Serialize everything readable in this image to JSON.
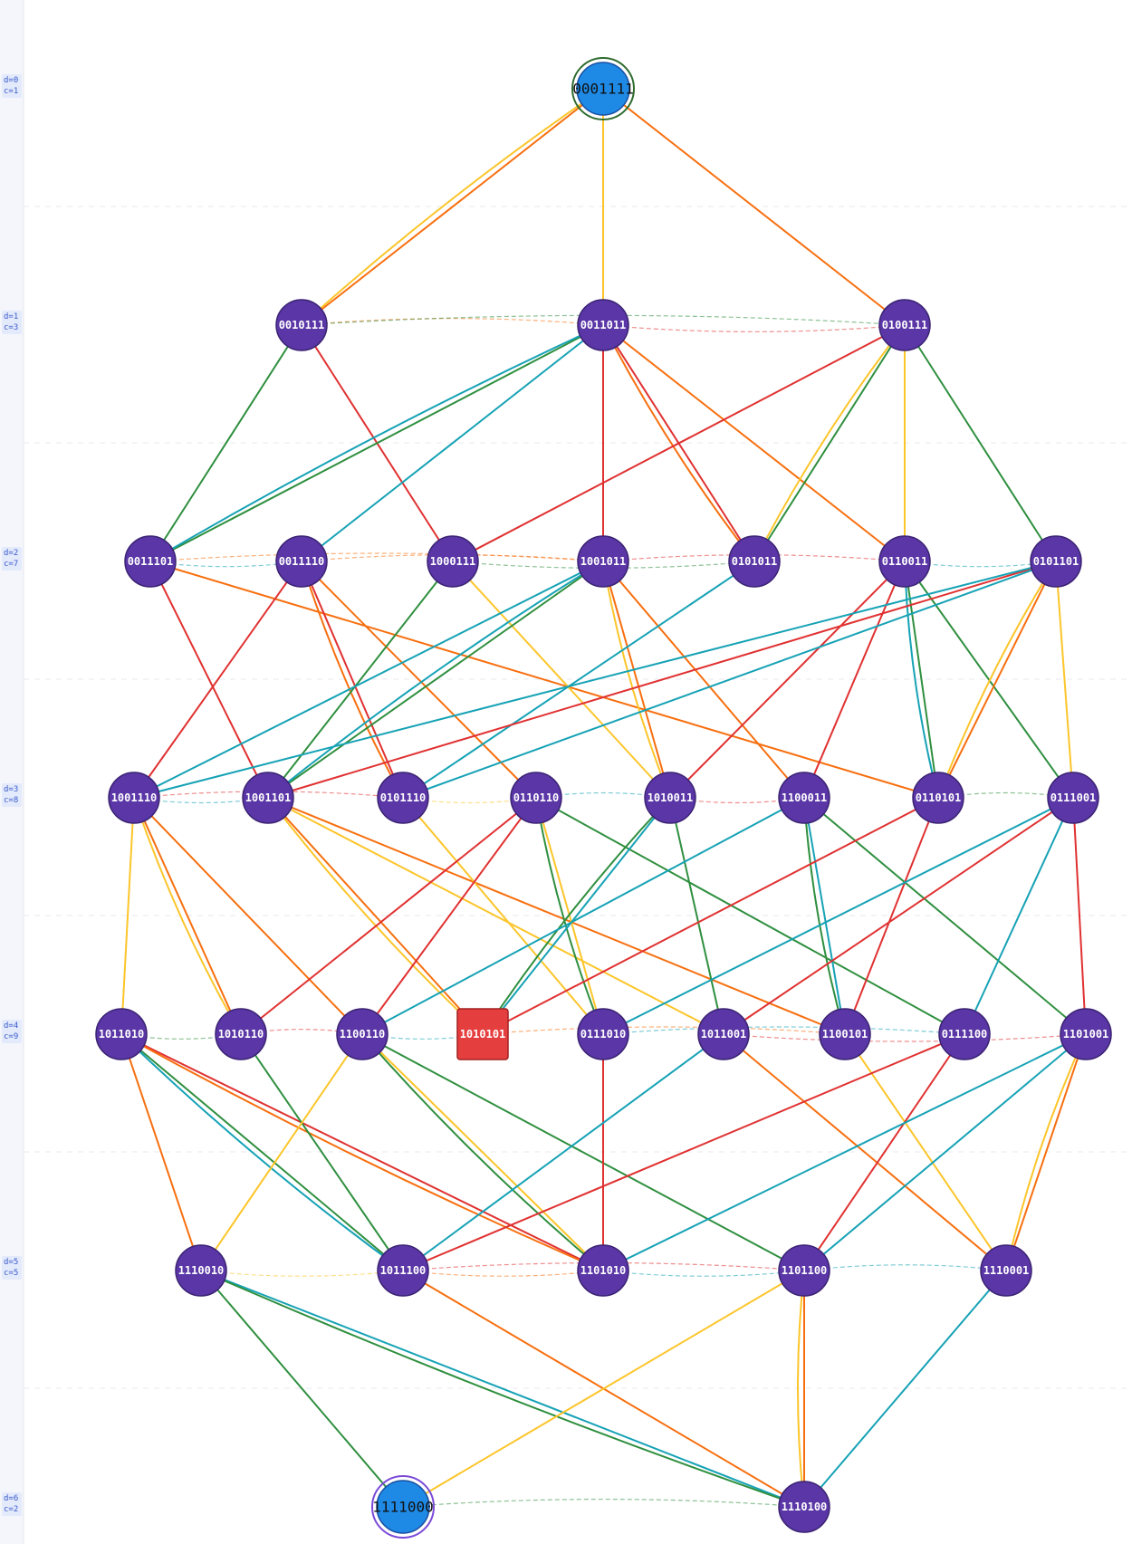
{
  "levels": [
    {
      "d": "d=0",
      "c": "c=1",
      "nodes": [
        "0001111"
      ]
    },
    {
      "d": "d=1",
      "c": "c=3",
      "nodes": [
        "0010111",
        "0011011",
        "0100111"
      ]
    },
    {
      "d": "d=2",
      "c": "c=7",
      "nodes": [
        "0011101",
        "0011110",
        "1000111",
        "1001011",
        "0101011",
        "0110011",
        "0101101"
      ]
    },
    {
      "d": "d=3",
      "c": "c=8",
      "nodes": [
        "1001110",
        "1001101",
        "0101110",
        "0110110",
        "1010011",
        "1100011",
        "0110101",
        "0111001"
      ]
    },
    {
      "d": "d=4",
      "c": "c=9",
      "nodes": [
        "1011010",
        "1010110",
        "1100110",
        "1010101",
        "0111010",
        "1011001",
        "1100101",
        "0111100",
        "1101001"
      ]
    },
    {
      "d": "d=5",
      "c": "c=5",
      "nodes": [
        "1110010",
        "1011100",
        "1101010",
        "1101100",
        "1110001"
      ]
    },
    {
      "d": "d=6",
      "c": "c=2",
      "nodes": [
        "1111000",
        "1110100"
      ]
    }
  ]
}
